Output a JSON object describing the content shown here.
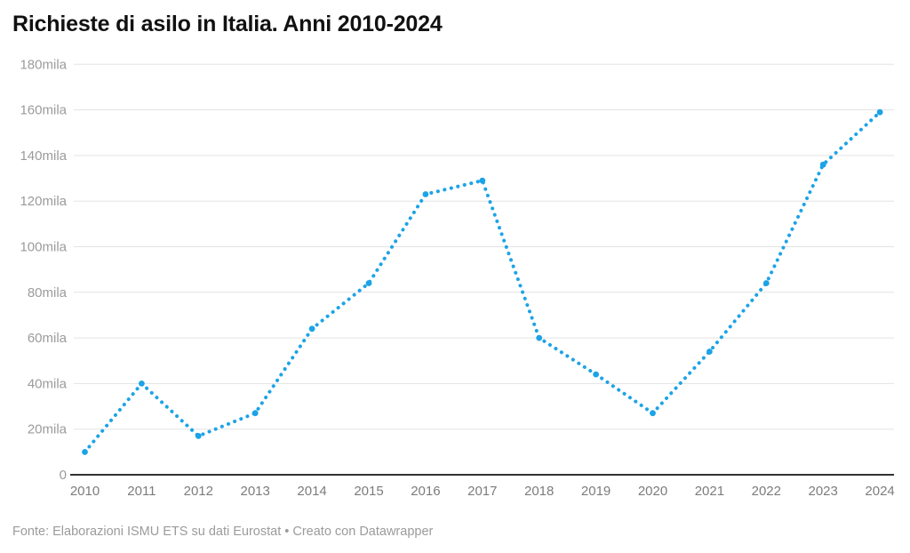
{
  "header": {
    "title": "Richieste di asilo in Italia. Anni 2010-2024"
  },
  "chart_data": {
    "type": "line",
    "line_style": "dotted",
    "title": "Richieste di asilo in Italia. Anni 2010-2024",
    "categories": [
      "2010",
      "2011",
      "2012",
      "2013",
      "2014",
      "2015",
      "2016",
      "2017",
      "2018",
      "2019",
      "2020",
      "2021",
      "2022",
      "2023",
      "2024"
    ],
    "values_mila": [
      10,
      40,
      17,
      27,
      64,
      84,
      123,
      129,
      60,
      44,
      27,
      54,
      84,
      136,
      159
    ],
    "unit": "mila (thousands of asylum applications)",
    "xlabel": "",
    "ylabel": "",
    "ylim_mila": [
      0,
      180
    ],
    "y_tick_step_mila": 20,
    "y_tick_labels": [
      "0",
      "20mila",
      "40mila",
      "60mila",
      "80mila",
      "100mila",
      "120mila",
      "140mila",
      "160mila",
      "180mila"
    ],
    "grid": "horizontal",
    "legend": "none",
    "line_color": "#1ca3e6"
  },
  "footer": {
    "source": "Fonte: Elaborazioni ISMU ETS su dati Eurostat",
    "separator": " • ",
    "attribution": "Creato con Datawrapper"
  },
  "colors": {
    "accent": "#1ca3e6",
    "grid_line": "#e3e3e3",
    "axis_line": "#333333",
    "y_label": "#9b9b9b",
    "x_label": "#7c7c7c",
    "title": "#111111",
    "footer": "#9b9b9b",
    "background": "#ffffff"
  }
}
